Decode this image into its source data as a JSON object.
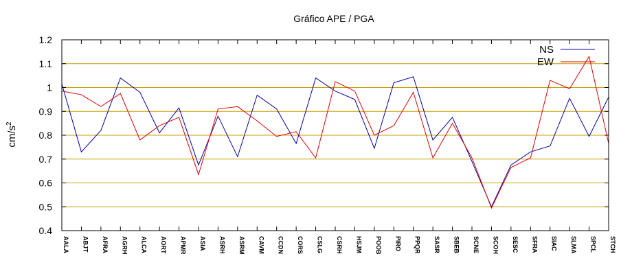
{
  "chart_data": {
    "type": "line",
    "title": "Gráfico  APE / PGA",
    "ylabel": "cm/s",
    "ylabel_sup": "2",
    "xlabel": "",
    "ylim": [
      0.4,
      1.2
    ],
    "yticks": [
      "0.4",
      "0.5",
      "0.6",
      "0.7",
      "0.8",
      "0.9",
      "1",
      "1.1",
      "1.2"
    ],
    "grid": true,
    "grid_color": "#c8a000",
    "legend_position": "top-right",
    "categories": [
      "AALA",
      "ABJT",
      "AFRA",
      "AGRH",
      "ALCA",
      "AORT",
      "APMR",
      "ASIA",
      "ASRH",
      "ASRM",
      "CAVM",
      "CCDN",
      "CORS",
      "CSLG",
      "CSRH",
      "HSJM",
      "POOB",
      "PIRO",
      "PPQR",
      "SASR",
      "SBEB",
      "SCNE",
      "SCOH",
      "SESC",
      "SFRA",
      "SIAC",
      "SLMA",
      "SPCL",
      "STCH"
    ],
    "series": [
      {
        "name": "NS",
        "color": "#0000aa",
        "values": [
          1.015,
          0.73,
          0.82,
          1.04,
          0.98,
          0.81,
          0.915,
          0.675,
          0.88,
          0.71,
          0.968,
          0.91,
          0.765,
          1.04,
          0.985,
          0.95,
          0.745,
          1.02,
          1.045,
          0.78,
          0.875,
          0.69,
          0.5,
          0.675,
          0.73,
          0.755,
          0.955,
          0.795,
          0.96
        ]
      },
      {
        "name": "EW",
        "color": "#dd0000",
        "values": [
          0.985,
          0.97,
          0.92,
          0.975,
          0.78,
          0.84,
          0.875,
          0.635,
          0.91,
          0.92,
          0.86,
          0.795,
          0.815,
          0.705,
          1.025,
          0.985,
          0.8,
          0.84,
          0.98,
          0.705,
          0.85,
          0.705,
          0.495,
          0.665,
          0.705,
          1.03,
          0.995,
          1.13,
          0.765
        ]
      }
    ]
  }
}
